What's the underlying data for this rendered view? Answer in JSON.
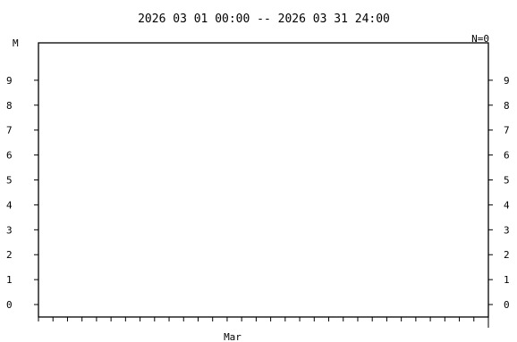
{
  "chart_data": {
    "type": "scatter",
    "title": "2026 03 01 00:00 -- 2026 03 31 24:00",
    "ylabel": "M",
    "count_label": "N=0",
    "x_tick_label": "Mar",
    "x": [],
    "y": [],
    "xlim": [
      "2026-03-01 00:00",
      "2026-03-31 24:00"
    ],
    "ylim": [
      -0.5,
      10.5
    ],
    "yticks": [
      0,
      1,
      2,
      3,
      4,
      5,
      6,
      7,
      8,
      9
    ],
    "ytick_labels": [
      "0",
      "1",
      "2",
      "3",
      "4",
      "5",
      "6",
      "7",
      "8",
      "9"
    ],
    "days_in_month": 31,
    "grid": false,
    "legend": "none"
  }
}
